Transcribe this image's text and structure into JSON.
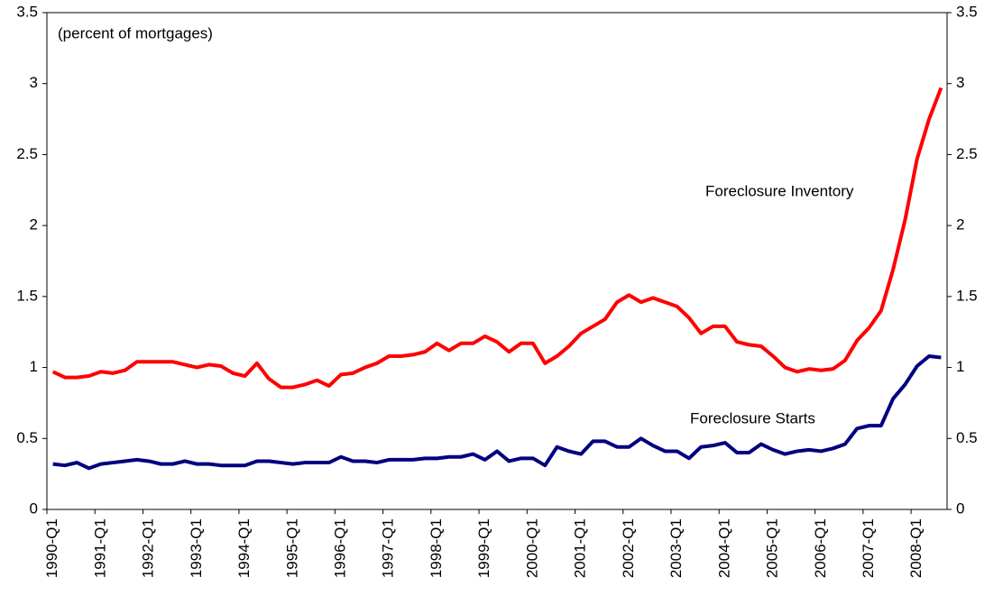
{
  "chart_data": {
    "type": "line",
    "annotations": [
      "(percent of mortgages)",
      "Foreclosure Inventory",
      "Foreclosure Starts"
    ],
    "categories": [
      "1990-Q1",
      null,
      null,
      null,
      "1991-Q1",
      null,
      null,
      null,
      "1992-Q1",
      null,
      null,
      null,
      "1993-Q1",
      null,
      null,
      null,
      "1994-Q1",
      null,
      null,
      null,
      "1995-Q1",
      null,
      null,
      null,
      "1996-Q1",
      null,
      null,
      null,
      "1997-Q1",
      null,
      null,
      null,
      "1998-Q1",
      null,
      null,
      null,
      "1999-Q1",
      null,
      null,
      null,
      "2000-Q1",
      null,
      null,
      null,
      "2001-Q1",
      null,
      null,
      null,
      "2002-Q1",
      null,
      null,
      null,
      "2003-Q1",
      null,
      null,
      null,
      "2004-Q1",
      null,
      null,
      null,
      "2005-Q1",
      null,
      null,
      null,
      "2006-Q1",
      null,
      null,
      null,
      "2007-Q1",
      null,
      null,
      null,
      "2008-Q1",
      null,
      null
    ],
    "series": [
      {
        "name": "Foreclosure Inventory",
        "color": "#ff0000",
        "values": [
          0.97,
          0.93,
          0.93,
          0.94,
          0.97,
          0.96,
          0.98,
          1.04,
          1.04,
          1.04,
          1.04,
          1.02,
          1.0,
          1.02,
          1.01,
          0.96,
          0.94,
          1.03,
          0.92,
          0.86,
          0.86,
          0.88,
          0.91,
          0.87,
          0.95,
          0.96,
          1.0,
          1.03,
          1.08,
          1.08,
          1.09,
          1.11,
          1.17,
          1.12,
          1.17,
          1.17,
          1.22,
          1.18,
          1.11,
          1.17,
          1.17,
          1.03,
          1.08,
          1.15,
          1.24,
          1.29,
          1.34,
          1.46,
          1.51,
          1.46,
          1.49,
          1.46,
          1.43,
          1.35,
          1.24,
          1.29,
          1.29,
          1.18,
          1.16,
          1.15,
          1.08,
          1.0,
          0.97,
          0.99,
          0.98,
          0.99,
          1.05,
          1.19,
          1.28,
          1.4,
          1.69,
          2.04,
          2.47,
          2.75,
          2.97
        ]
      },
      {
        "name": "Foreclosure Starts",
        "color": "#000080",
        "values": [
          0.32,
          0.31,
          0.33,
          0.29,
          0.32,
          0.33,
          0.34,
          0.35,
          0.34,
          0.32,
          0.32,
          0.34,
          0.32,
          0.32,
          0.31,
          0.31,
          0.31,
          0.34,
          0.34,
          0.33,
          0.32,
          0.33,
          0.33,
          0.33,
          0.37,
          0.34,
          0.34,
          0.33,
          0.35,
          0.35,
          0.35,
          0.36,
          0.36,
          0.37,
          0.37,
          0.39,
          0.35,
          0.41,
          0.34,
          0.36,
          0.36,
          0.31,
          0.44,
          0.41,
          0.39,
          0.48,
          0.48,
          0.44,
          0.44,
          0.5,
          0.45,
          0.41,
          0.41,
          0.36,
          0.44,
          0.45,
          0.47,
          0.4,
          0.4,
          0.46,
          0.42,
          0.39,
          0.41,
          0.42,
          0.41,
          0.43,
          0.46,
          0.57,
          0.59,
          0.59,
          0.78,
          0.88,
          1.01,
          1.08,
          1.07
        ]
      }
    ],
    "ylim": [
      0,
      3.5
    ],
    "yticks": [
      0,
      0.5,
      1,
      1.5,
      2,
      2.5,
      3,
      3.5
    ],
    "y2lim": [
      0,
      3.5
    ],
    "y2ticks": [
      0,
      0.5,
      1,
      1.5,
      2,
      2.5,
      3,
      3.5
    ],
    "grid": false
  }
}
